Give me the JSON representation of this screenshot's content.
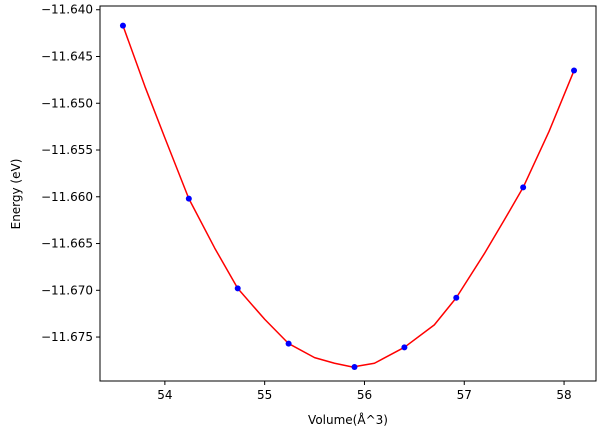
{
  "chart_data": {
    "type": "scatter",
    "title": "",
    "xlabel": "Volume(Å^3)",
    "ylabel": "Energy (eV)",
    "xlim": [
      53.35,
      58.32
    ],
    "ylim": [
      -11.6797,
      -11.6396
    ],
    "xticks": [
      54,
      55,
      56,
      57,
      58
    ],
    "xtick_labels": [
      "54",
      "55",
      "56",
      "57",
      "58"
    ],
    "yticks": [
      -11.64,
      -11.645,
      -11.65,
      -11.655,
      -11.66,
      -11.665,
      -11.67,
      -11.675
    ],
    "ytick_labels": [
      "−11.640",
      "−11.645",
      "−11.650",
      "−11.655",
      "−11.660",
      "−11.665",
      "−11.670",
      "−11.675"
    ],
    "grid": false,
    "legend": "none",
    "series": [
      {
        "kind": "points",
        "color": "#0000ff",
        "x": [
          53.58,
          54.24,
          54.73,
          55.24,
          55.9,
          56.4,
          56.92,
          57.59,
          58.1
        ],
        "y": [
          -11.6417,
          -11.6602,
          -11.6698,
          -11.6757,
          -11.6782,
          -11.6761,
          -11.6708,
          -11.659,
          -11.6465
        ]
      },
      {
        "kind": "fit-curve",
        "color": "#ff0000",
        "x": [
          53.58,
          53.8,
          54.0,
          54.24,
          54.5,
          54.73,
          55.0,
          55.24,
          55.5,
          55.7,
          55.88,
          56.1,
          56.4,
          56.7,
          56.92,
          57.2,
          57.4,
          57.59,
          57.85,
          58.1
        ],
        "y": [
          -11.6417,
          -11.6482,
          -11.6537,
          -11.6602,
          -11.6655,
          -11.6698,
          -11.6731,
          -11.6757,
          -11.6772,
          -11.6778,
          -11.6782,
          -11.6778,
          -11.6761,
          -11.6737,
          -11.6708,
          -11.6661,
          -11.6625,
          -11.659,
          -11.653,
          -11.6465
        ]
      }
    ]
  }
}
